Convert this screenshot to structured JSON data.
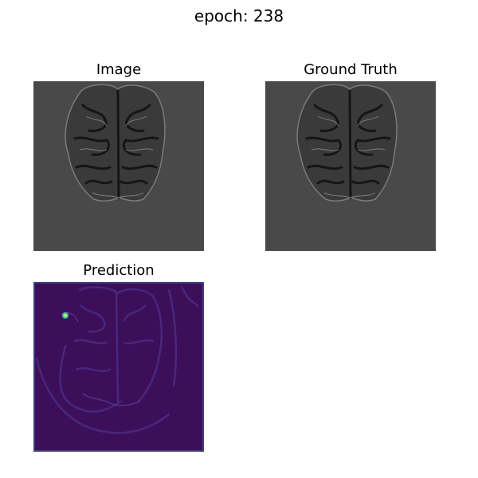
{
  "figure": {
    "title": "epoch: 238"
  },
  "panels": {
    "image": {
      "title": "Image",
      "background_color": "#494949",
      "tissue_color": "#3a3a3a"
    },
    "ground_truth": {
      "title": "Ground Truth",
      "background_color": "#494949",
      "tissue_color": "#3a3a3a"
    },
    "prediction": {
      "title": "Prediction",
      "background_color": "#3d0f5a",
      "edge_color": "#3a3f82",
      "highlight_color": "#3fc0a0"
    }
  }
}
